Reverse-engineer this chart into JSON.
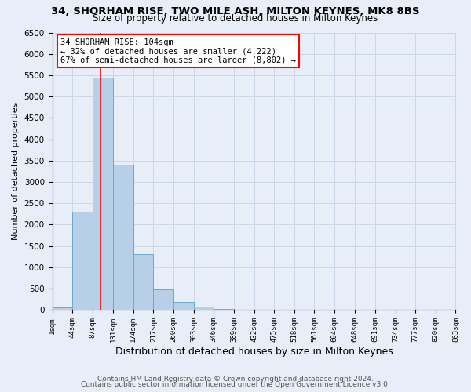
{
  "title": "34, SHORHAM RISE, TWO MILE ASH, MILTON KEYNES, MK8 8BS",
  "subtitle": "Size of property relative to detached houses in Milton Keynes",
  "xlabel": "Distribution of detached houses by size in Milton Keynes",
  "ylabel": "Number of detached properties",
  "bin_edges": [
    1,
    44,
    87,
    131,
    174,
    217,
    260,
    303,
    346,
    389,
    432,
    475,
    518,
    561,
    604,
    648,
    691,
    734,
    777,
    820,
    863
  ],
  "bin_heights": [
    50,
    2300,
    5450,
    3400,
    1300,
    480,
    190,
    80,
    30,
    0,
    0,
    0,
    0,
    0,
    0,
    0,
    0,
    0,
    0,
    0
  ],
  "bar_color": "#b8cfe8",
  "bar_edge_color": "#6aaad4",
  "vline_x": 104,
  "vline_color": "red",
  "annotation_title": "34 SHORHAM RISE: 104sqm",
  "annotation_line1": "← 32% of detached houses are smaller (4,222)",
  "annotation_line2": "67% of semi-detached houses are larger (8,802) →",
  "annotation_box_edge_color": "red",
  "annotation_box_bg": "white",
  "ylim_max": 6500,
  "yticks": [
    0,
    500,
    1000,
    1500,
    2000,
    2500,
    3000,
    3500,
    4000,
    4500,
    5000,
    5500,
    6000,
    6500
  ],
  "xtick_labels": [
    "1sqm",
    "44sqm",
    "87sqm",
    "131sqm",
    "174sqm",
    "217sqm",
    "260sqm",
    "303sqm",
    "346sqm",
    "389sqm",
    "432sqm",
    "475sqm",
    "518sqm",
    "561sqm",
    "604sqm",
    "648sqm",
    "691sqm",
    "734sqm",
    "777sqm",
    "820sqm",
    "863sqm"
  ],
  "grid_color": "#ccd6e8",
  "bg_color": "#e8eef7",
  "footer1": "Contains HM Land Registry data © Crown copyright and database right 2024.",
  "footer2": "Contains public sector information licensed under the Open Government Licence v3.0."
}
